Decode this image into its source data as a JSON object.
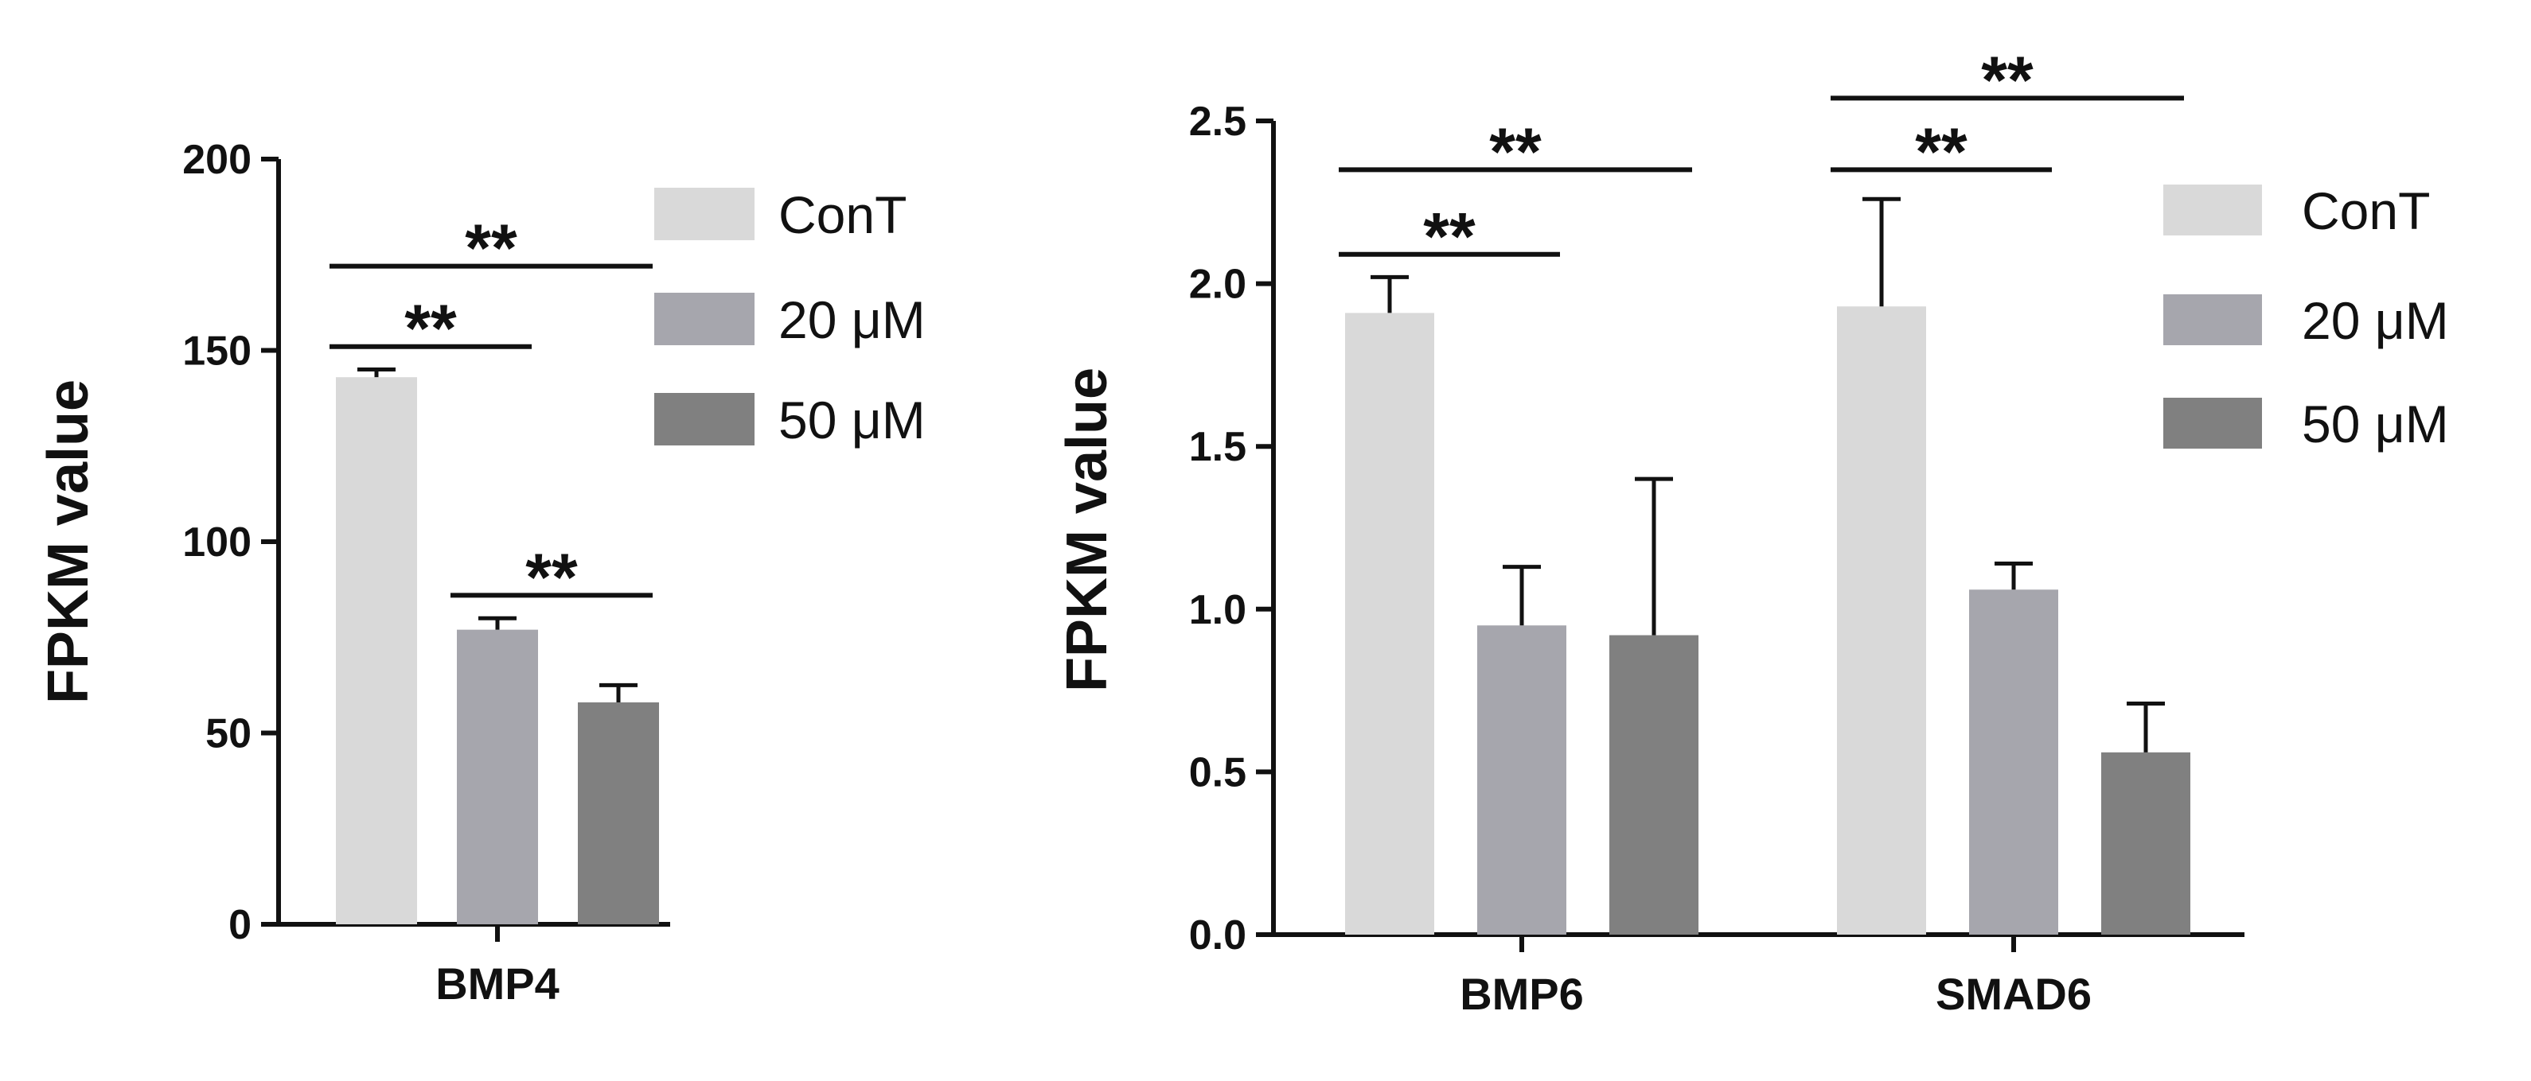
{
  "chart_data": [
    {
      "type": "bar",
      "title": "",
      "ylabel": "FPKM value",
      "xlabel": "",
      "ylim": [
        0,
        200
      ],
      "yticks": [
        0,
        50,
        100,
        150,
        200
      ],
      "tick_labels": [
        "0",
        "50",
        "100",
        "150",
        "200"
      ],
      "categories": [
        "BMP4"
      ],
      "series": [
        {
          "name": "ConT",
          "values": [
            143
          ],
          "errors": [
            2
          ],
          "color": "#d9d9d9"
        },
        {
          "name": "20 μM",
          "values": [
            77
          ],
          "errors": [
            3
          ],
          "color": "#a6a6ad"
        },
        {
          "name": "50 μM",
          "values": [
            58
          ],
          "errors": [
            4.5
          ],
          "color": "#808080"
        }
      ],
      "legend": {
        "position": "right",
        "entries": [
          "ConT",
          "20 μM",
          "50 μM"
        ]
      },
      "annotations": [
        {
          "text": "**",
          "category": "BMP4",
          "from_series": 0,
          "to_series": 1,
          "y": 151
        },
        {
          "text": "**",
          "category": "BMP4",
          "from_series": 0,
          "to_series": 2,
          "y": 172
        },
        {
          "text": "**",
          "category": "BMP4",
          "from_series": 1,
          "to_series": 2,
          "y": 86
        }
      ]
    },
    {
      "type": "bar",
      "title": "",
      "ylabel": "FPKM value",
      "xlabel": "",
      "ylim": [
        0,
        2.5
      ],
      "yticks": [
        0,
        0.5,
        1.0,
        1.5,
        2.0,
        2.5
      ],
      "tick_labels": [
        "0.0",
        "0.5",
        "1.0",
        "1.5",
        "2.0",
        "2.5"
      ],
      "categories": [
        "BMP6",
        "SMAD6"
      ],
      "series": [
        {
          "name": "ConT",
          "values": [
            1.91,
            1.93
          ],
          "errors": [
            0.11,
            0.33
          ],
          "color": "#d9d9d9"
        },
        {
          "name": "20 μM",
          "values": [
            0.95,
            1.06
          ],
          "errors": [
            0.18,
            0.08
          ],
          "color": "#a6a6ad"
        },
        {
          "name": "50 μM",
          "values": [
            0.92,
            0.56
          ],
          "errors": [
            0.48,
            0.15
          ],
          "color": "#808080"
        }
      ],
      "legend": {
        "position": "right",
        "entries": [
          "ConT",
          "20 μM",
          "50 μM"
        ]
      },
      "annotations": [
        {
          "text": "**",
          "category": "BMP6",
          "from_series": 0,
          "to_series": 1,
          "y": 2.09
        },
        {
          "text": "**",
          "category": "BMP6",
          "from_series": 0,
          "to_series": 2,
          "y": 2.35
        },
        {
          "text": "**",
          "category": "SMAD6",
          "from_series": 0,
          "to_series": 1,
          "y": 2.35
        },
        {
          "text": "**",
          "category": "SMAD6",
          "from_series": 0,
          "to_series": 2,
          "y": 2.57
        }
      ]
    }
  ]
}
